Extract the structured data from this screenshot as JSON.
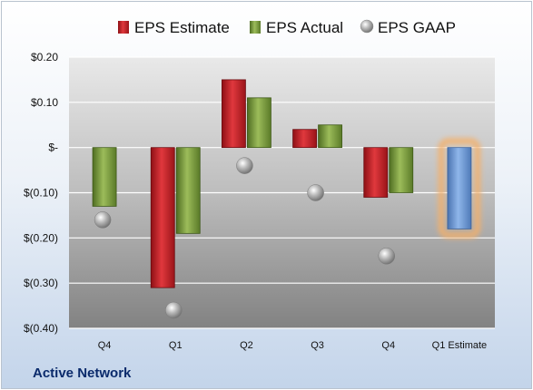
{
  "chart_data": {
    "type": "bar",
    "categories": [
      "Q4",
      "Q1",
      "Q2",
      "Q3",
      "Q4",
      "Q1 Estimate"
    ],
    "series": [
      {
        "name": "EPS Estimate",
        "color": "#cc2229",
        "values": [
          null,
          -0.31,
          0.15,
          0.04,
          -0.11,
          null
        ]
      },
      {
        "name": "EPS Actual",
        "color": "#7a9a3a",
        "values": [
          -0.13,
          -0.19,
          0.11,
          0.05,
          -0.1,
          null
        ]
      },
      {
        "name": "EPS GAAP",
        "color": "#9a9a9a",
        "marker": "circle",
        "values": [
          -0.16,
          -0.36,
          -0.04,
          -0.1,
          -0.24,
          null
        ]
      }
    ],
    "projection": {
      "category": "Q1 Estimate",
      "value": -0.18,
      "color": "#6a97d6",
      "glow": "#f4b06a"
    },
    "ylim": [
      -0.4,
      0.2
    ],
    "yticks": [
      0.2,
      0.1,
      0.0,
      -0.1,
      -0.2,
      -0.3,
      -0.4
    ],
    "ytick_labels": [
      "$0.20",
      "$0.10",
      "$-",
      "$(0.10)",
      "$(0.20)",
      "$(0.30)",
      "$(0.40)"
    ],
    "legend_position": "top",
    "grid": true
  },
  "footer": {
    "company": "Active Network"
  }
}
